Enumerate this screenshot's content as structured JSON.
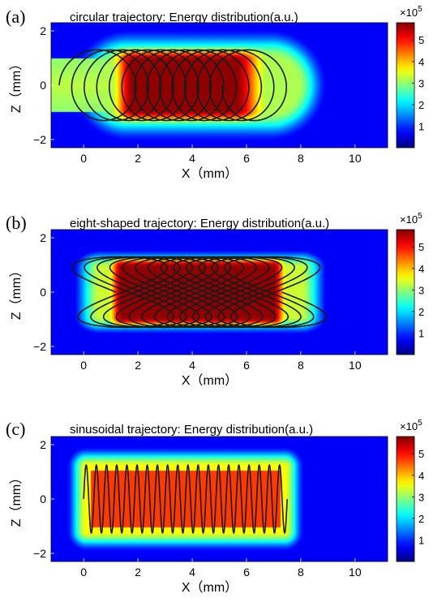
{
  "figure": {
    "colormap": "jet",
    "background_color": "#00009f",
    "trajectory_color": "#1a1a1a"
  },
  "chart_data": [
    {
      "type": "heatmap",
      "panel_label": "(a)",
      "title": "circular trajectory: Energy distribution(a.u.)",
      "xlabel": "X（mm）",
      "ylabel": "Z（mm）",
      "xlim": [
        -1.2,
        11.2
      ],
      "ylim": [
        -2.3,
        2.3
      ],
      "xticks": [
        0,
        2,
        4,
        6,
        8,
        10
      ],
      "yticks": [
        -2,
        0,
        2
      ],
      "colorbar": {
        "range": [
          0,
          5.8
        ],
        "ticks": [
          1,
          2,
          3,
          4,
          5
        ],
        "exponent_base": "×10",
        "exponent": "5"
      },
      "trajectory": {
        "shape": "circular",
        "x_start": 0.4,
        "x_end": 6.4,
        "radius": 1.3,
        "turns": 13
      },
      "energy": {
        "region_x": [
          0.3,
          8.2
        ],
        "half_height": 1.3,
        "peak": 5.6
      }
    },
    {
      "type": "heatmap",
      "panel_label": "(b)",
      "title": "eight-shaped trajectory: Energy distribution(a.u.)",
      "xlabel": "X（mm）",
      "ylabel": "Z（mm）",
      "xlim": [
        -1.2,
        11.2
      ],
      "ylim": [
        -2.3,
        2.3
      ],
      "xticks": [
        0,
        2,
        4,
        6,
        8,
        10
      ],
      "yticks": [
        -2,
        0,
        2
      ],
      "colorbar": {
        "range": [
          0,
          5.8
        ],
        "ticks": [
          1,
          2,
          3,
          4,
          5
        ],
        "exponent_base": "×10",
        "exponent": "5"
      },
      "trajectory": {
        "shape": "eight-shaped",
        "x_start": 1.2,
        "x_end": 7.3,
        "amplitude_x": 1.7,
        "amplitude_z": 1.3,
        "turns": 13
      },
      "energy": {
        "region_x": [
          -0.3,
          9.0
        ],
        "half_height": 1.3,
        "peak": 5.7
      }
    },
    {
      "type": "heatmap",
      "panel_label": "(c)",
      "title": "sinusoidal trajectory: Energy distribution(a.u.)",
      "xlabel": "X（mm）",
      "ylabel": "Z（mm）",
      "xlim": [
        -1.2,
        11.2
      ],
      "ylim": [
        -2.3,
        2.3
      ],
      "xticks": [
        0,
        2,
        4,
        6,
        8,
        10
      ],
      "yticks": [
        -2,
        0,
        2
      ],
      "colorbar": {
        "range": [
          0,
          5.8
        ],
        "ticks": [
          1,
          2,
          3,
          4,
          5
        ],
        "exponent_base": "×10",
        "exponent": "5"
      },
      "trajectory": {
        "shape": "sinusoidal",
        "x_start": 0.0,
        "x_end": 7.5,
        "amplitude_z": 1.25,
        "cycles": 20
      },
      "energy": {
        "region_x": [
          0.1,
          7.4
        ],
        "half_height": 1.3,
        "peak": 4.8
      }
    }
  ]
}
